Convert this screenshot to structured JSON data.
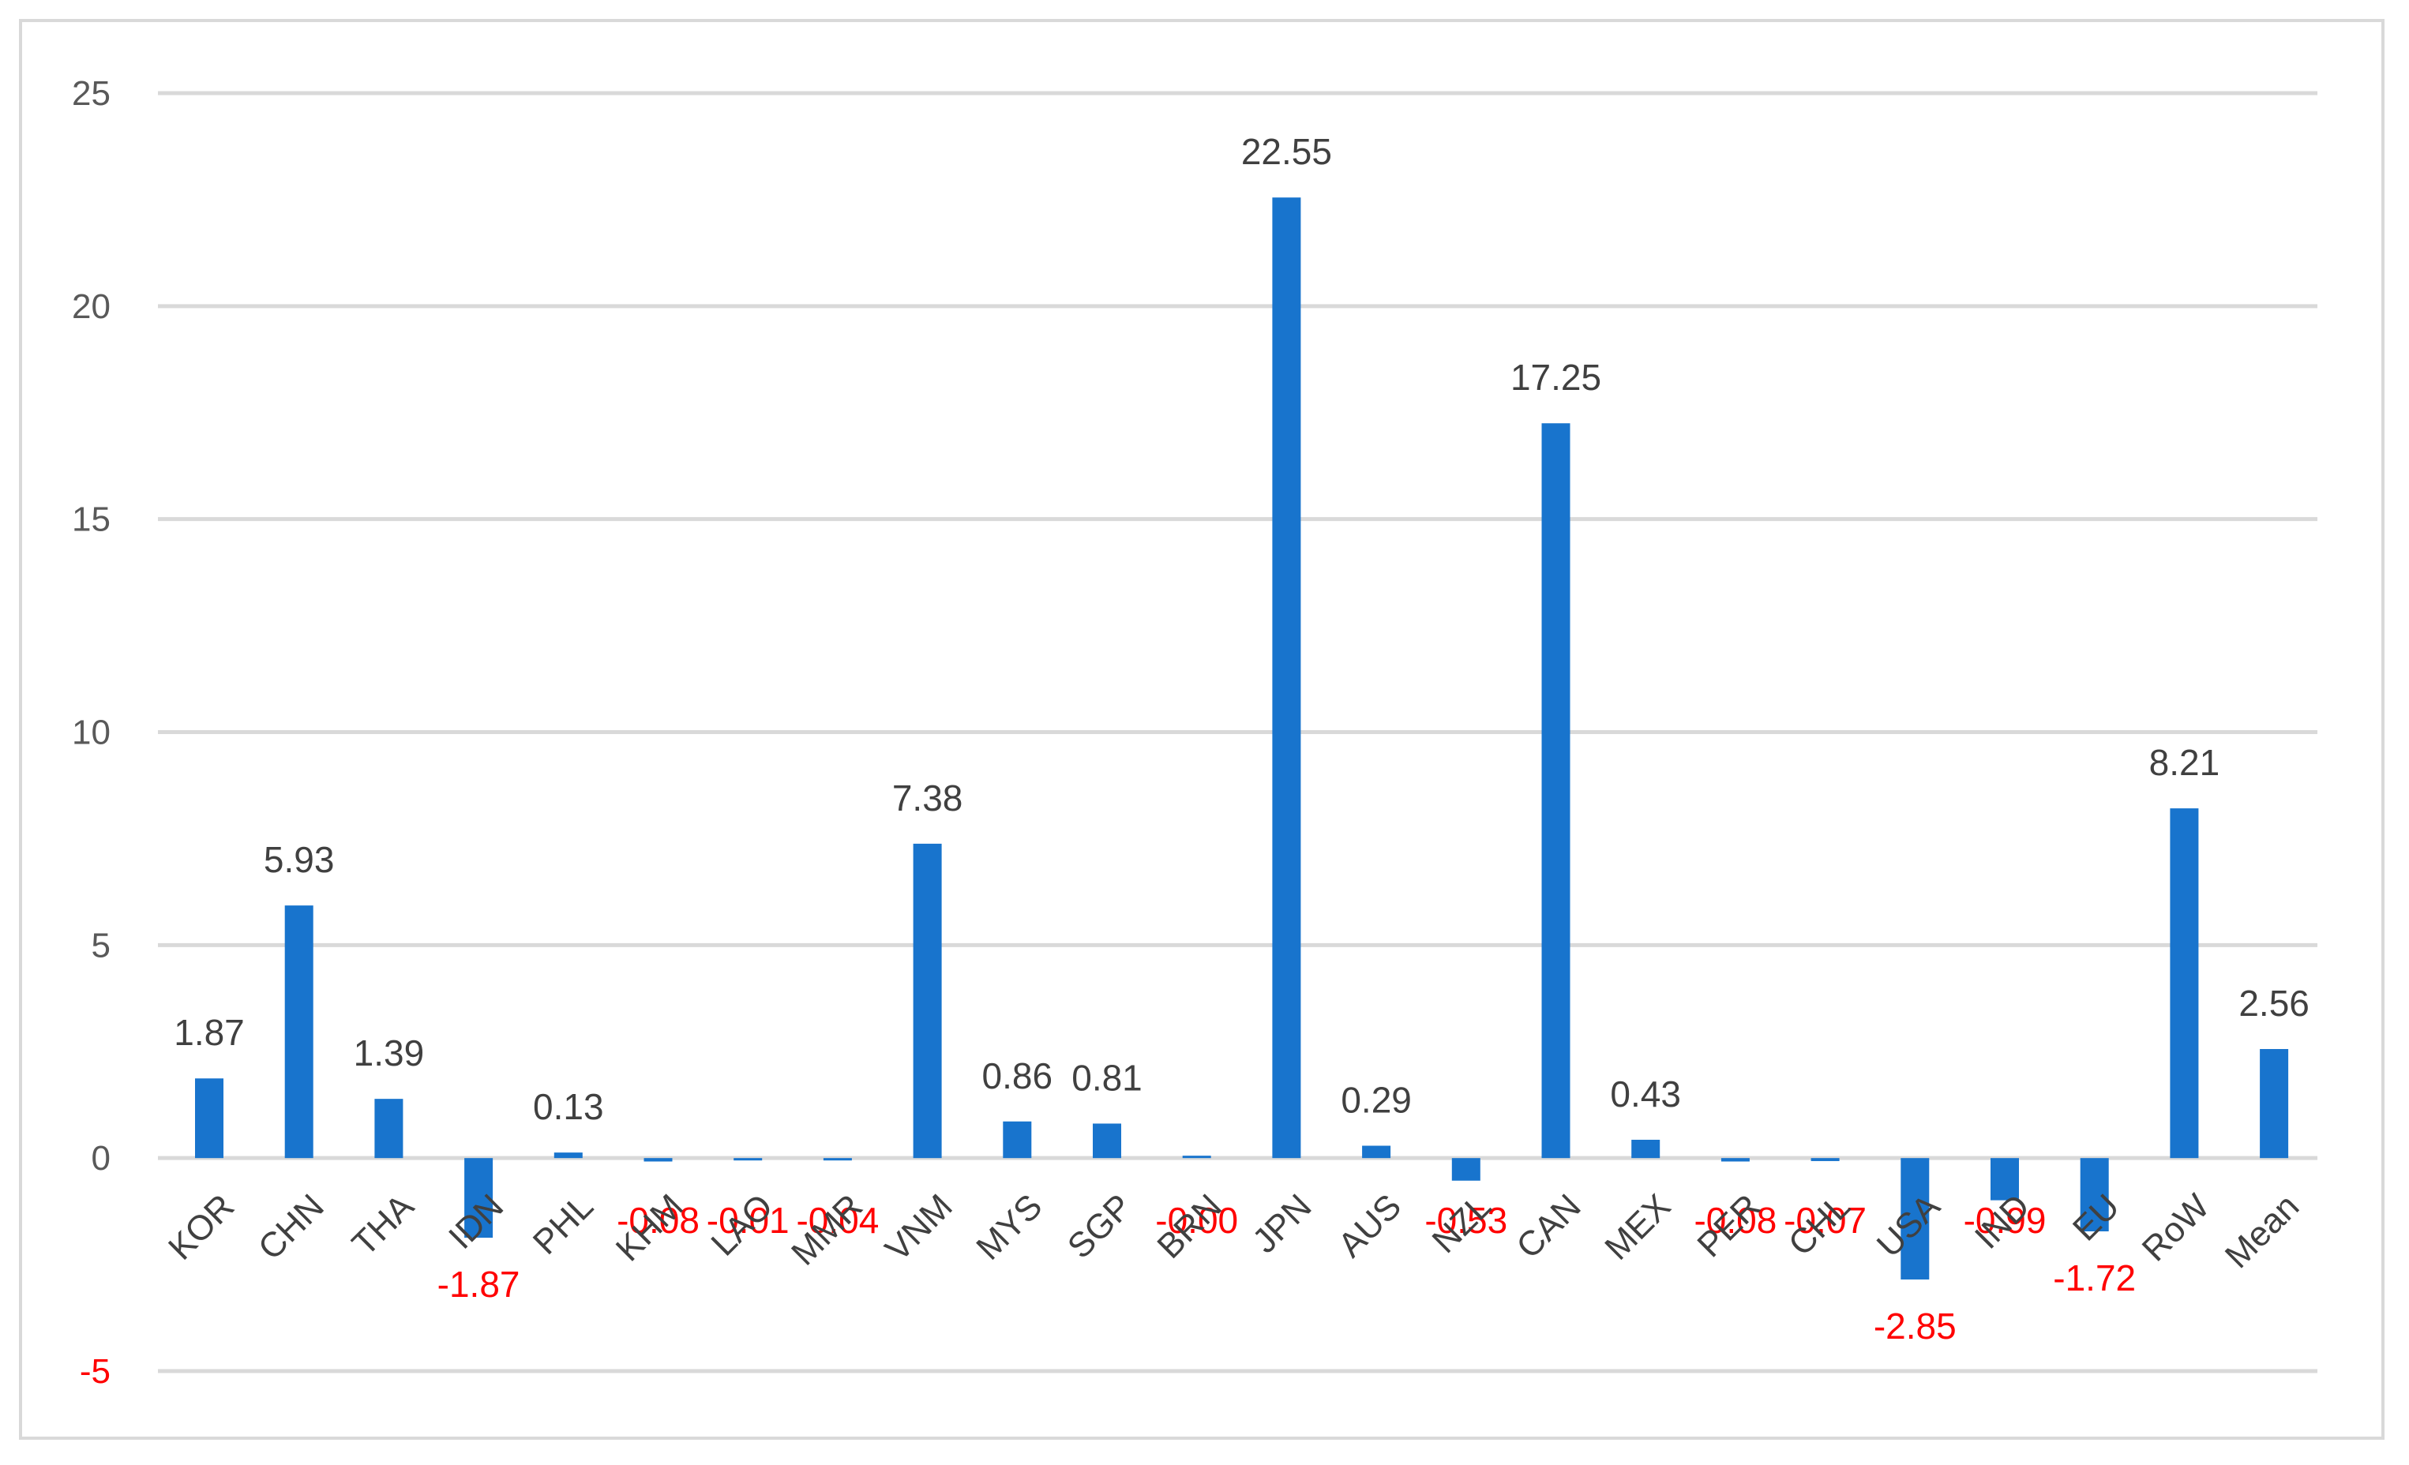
{
  "chart_data": {
    "type": "bar",
    "title": "",
    "xlabel": "",
    "ylabel": "",
    "ylim": [
      -5,
      25
    ],
    "yticks": [
      25,
      20,
      15,
      10,
      5,
      0,
      -5
    ],
    "grid": true,
    "legend": "none",
    "bar_color": "#1874cd",
    "negative_label_color": "#ff0000",
    "categories": [
      "KOR",
      "CHN",
      "THA",
      "IDN",
      "PHL",
      "KHM",
      "LAO",
      "MMR",
      "VNM",
      "MYS",
      "SGP",
      "BRN",
      "JPN",
      "AUS",
      "NZL",
      "CAN",
      "MEX",
      "PER",
      "CHL",
      "USA",
      "IND",
      "EU",
      "RoW",
      "Mean"
    ],
    "values": [
      1.87,
      5.93,
      1.39,
      -1.87,
      0.13,
      -0.08,
      -0.01,
      -0.04,
      7.38,
      0.86,
      0.81,
      -0.0,
      22.55,
      0.29,
      -0.53,
      17.25,
      0.43,
      -0.08,
      -0.07,
      -2.85,
      -0.99,
      -1.72,
      8.21,
      2.56
    ],
    "labels": [
      "1.87",
      "5.93",
      "1.39",
      "-1.87",
      "0.13",
      "-0.08",
      "-0.01",
      "-0.04",
      "7.38",
      "0.86",
      "0.81",
      "-0.00",
      "22.55",
      "0.29",
      "-0.53",
      "17.25",
      "0.43",
      "-0.08",
      "-0.07",
      "-2.85",
      "-0.99",
      "-1.72",
      "8.21",
      "2.56"
    ]
  }
}
